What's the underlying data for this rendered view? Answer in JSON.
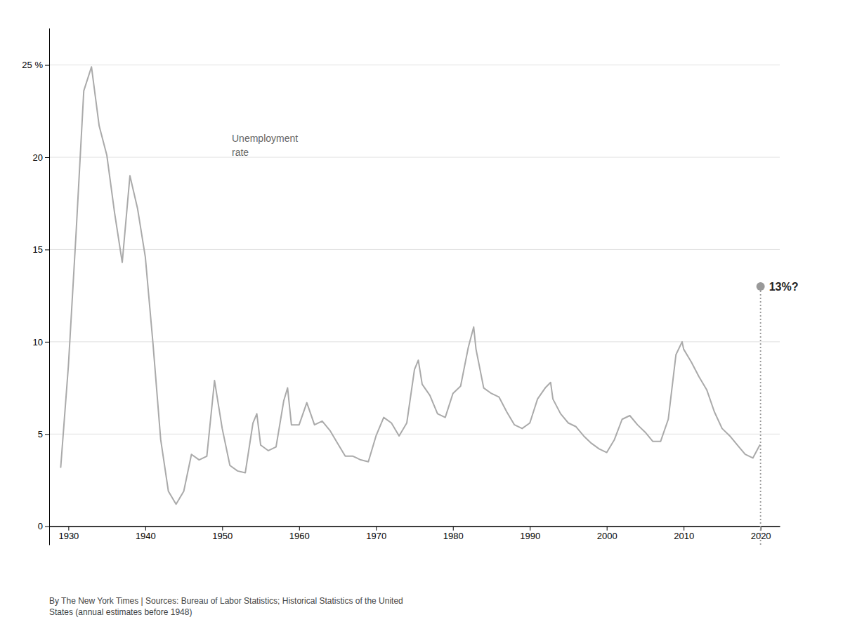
{
  "chart_data": {
    "type": "line",
    "ylabel": "Unemployment\nrate",
    "source": "By The New York Times | Sources: Bureau of Labor Statistics; Historical Statistics of the United\nStates (annual estimates before 1948)",
    "xlim": [
      1927.5,
      2022.5
    ],
    "ylim": [
      -1,
      27
    ],
    "xticks": [
      1930,
      1940,
      1950,
      1960,
      1970,
      1980,
      1990,
      2000,
      2010,
      2020
    ],
    "yticks": [
      0,
      5,
      10,
      15,
      20,
      {
        "value": 25,
        "label": "25 %"
      }
    ],
    "grid": true,
    "series": [
      {
        "type": "line",
        "color": "#aaaaaa",
        "x": [
          1929,
          1930,
          1931,
          1932,
          1933,
          1934,
          1935,
          1936,
          1937,
          1938,
          1939,
          1940,
          1941,
          1942,
          1943,
          1944,
          1945,
          1946,
          1947,
          1948,
          1949,
          1950,
          1951,
          1952,
          1953,
          1954,
          1954.5,
          1955,
          1956,
          1957,
          1958,
          1958.5,
          1959,
          1960,
          1961,
          1962,
          1963,
          1964,
          1965,
          1966,
          1967,
          1968,
          1969,
          1970,
          1971,
          1972,
          1973,
          1974,
          1975,
          1975.5,
          1976,
          1977,
          1978,
          1979,
          1980,
          1981,
          1982,
          1982.7,
          1983,
          1984,
          1985,
          1986,
          1987,
          1988,
          1989,
          1990,
          1991,
          1992,
          1992.7,
          1993,
          1994,
          1995,
          1996,
          1997,
          1998,
          1999,
          2000,
          2001,
          2002,
          2003,
          2004,
          2005,
          2006,
          2007,
          2008,
          2009,
          2009.8,
          2010,
          2011,
          2012,
          2013,
          2014,
          2015,
          2016,
          2017,
          2018,
          2019,
          2019.9
        ],
        "values": [
          3.2,
          8.7,
          15.9,
          23.6,
          24.9,
          21.7,
          20.1,
          17.0,
          14.3,
          19.0,
          17.2,
          14.6,
          9.9,
          4.7,
          1.9,
          1.2,
          1.9,
          3.9,
          3.6,
          3.8,
          7.9,
          5.3,
          3.3,
          3.0,
          2.9,
          5.6,
          6.1,
          4.4,
          4.1,
          4.3,
          6.8,
          7.5,
          5.5,
          5.5,
          6.7,
          5.5,
          5.7,
          5.2,
          4.5,
          3.8,
          3.8,
          3.6,
          3.5,
          4.9,
          5.9,
          5.6,
          4.9,
          5.6,
          8.5,
          9.0,
          7.7,
          7.1,
          6.1,
          5.9,
          7.2,
          7.6,
          9.7,
          10.8,
          9.6,
          7.5,
          7.2,
          7.0,
          6.2,
          5.5,
          5.3,
          5.6,
          6.9,
          7.5,
          7.8,
          6.9,
          6.1,
          5.6,
          5.4,
          4.9,
          4.5,
          4.2,
          4.0,
          4.7,
          5.8,
          6.0,
          5.5,
          5.1,
          4.6,
          4.6,
          5.8,
          9.3,
          10.0,
          9.6,
          8.9,
          8.1,
          7.4,
          6.2,
          5.3,
          4.9,
          4.4,
          3.9,
          3.7,
          4.4
        ]
      },
      {
        "type": "scatter",
        "color": "#999999",
        "x": [
          2020
        ],
        "values": [
          13
        ],
        "data_labels": true,
        "value_labels": [
          "13%?"
        ]
      }
    ]
  }
}
